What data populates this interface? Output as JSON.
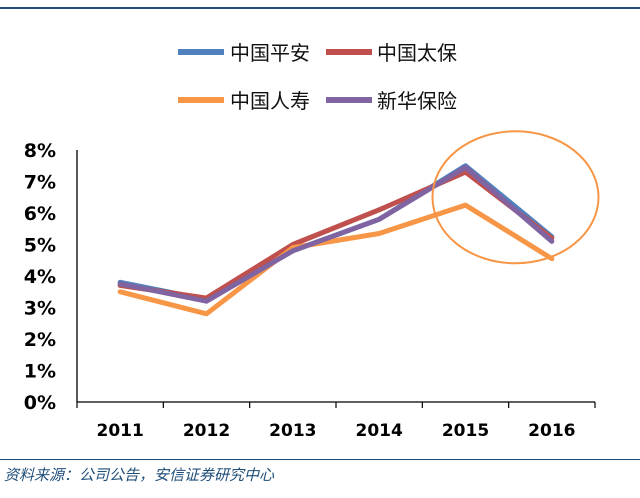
{
  "chart_data": {
    "type": "line",
    "title": "",
    "xlabel": "",
    "ylabel": "",
    "categories": [
      "2011",
      "2012",
      "2013",
      "2014",
      "2015",
      "2016"
    ],
    "ylim": [
      0,
      8
    ],
    "yticks": [
      "0%",
      "1%",
      "2%",
      "3%",
      "4%",
      "5%",
      "6%",
      "7%",
      "8%"
    ],
    "legend_position": "top",
    "series": [
      {
        "name": "中国平安",
        "color": "#4f81bd",
        "values": [
          3.8,
          3.25,
          4.8,
          5.8,
          7.5,
          5.25
        ]
      },
      {
        "name": "中国太保",
        "color": "#c0504d",
        "values": [
          3.7,
          3.3,
          5.0,
          6.1,
          7.3,
          5.2
        ]
      },
      {
        "name": "中国人寿",
        "color": "#f79646",
        "values": [
          3.5,
          2.8,
          4.9,
          5.35,
          6.25,
          4.55
        ]
      },
      {
        "name": "新华保险",
        "color": "#8064a2",
        "values": [
          3.75,
          3.2,
          4.8,
          5.8,
          7.45,
          5.1
        ]
      }
    ],
    "annotation": {
      "type": "ellipse",
      "target_category": "2015",
      "color": "#f79646"
    }
  },
  "footer": {
    "source": "资料来源：公司公告，安信证券研究中心"
  }
}
